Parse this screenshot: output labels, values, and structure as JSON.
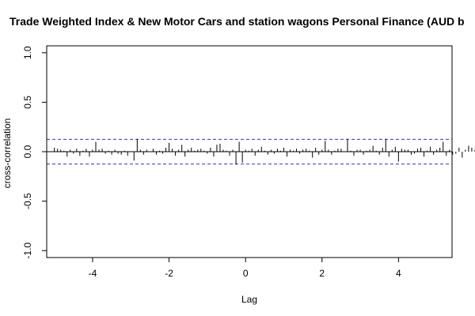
{
  "chart_data": {
    "type": "bar",
    "title": "Trade Weighted Index & New Motor Cars and station wagons Personal Finance (AUD b",
    "xlabel": "Lag",
    "ylabel": "cross-correlation",
    "xlim": [
      -5.2,
      5.4
    ],
    "ylim": [
      -1.07,
      1.07
    ],
    "x_ticks": [
      "-4",
      "-2",
      "0",
      "2",
      "4"
    ],
    "y_ticks": [
      "-1.0",
      "-0.5",
      "0.0",
      "0.5",
      "1.0"
    ],
    "confidence_limit": 0.125,
    "colors": {
      "bars": "#000000",
      "zero_line": "#000000",
      "confidence": "#3333cc",
      "frame": "#000000"
    },
    "lag_start": -5.0,
    "lag_step": 0.08333,
    "values": [
      0.04,
      0.03,
      0.02,
      0.01,
      -0.05,
      0.02,
      -0.02,
      0.03,
      -0.04,
      0.01,
      0.03,
      -0.05,
      0.02,
      0.1,
      0.02,
      0.03,
      -0.02,
      0.01,
      -0.03,
      0.02,
      -0.02,
      -0.03,
      0.01,
      -0.04,
      0.0,
      -0.09,
      0.13,
      0.02,
      -0.03,
      0.02,
      0.0,
      0.03,
      -0.03,
      0.01,
      -0.02,
      0.04,
      0.09,
      0.03,
      -0.04,
      0.02,
      0.07,
      -0.05,
      0.02,
      0.04,
      0.01,
      0.02,
      0.03,
      0.01,
      -0.02,
      0.04,
      -0.05,
      0.07,
      0.08,
      0.02,
      0.01,
      -0.04,
      0.02,
      -0.13,
      0.1,
      -0.11,
      0.02,
      0.01,
      0.03,
      -0.04,
      0.02,
      0.05,
      0.01,
      -0.03,
      0.02,
      -0.02,
      0.03,
      0.01,
      0.04,
      -0.05,
      0.02,
      0.01,
      0.03,
      -0.02,
      0.02,
      0.03,
      0.01,
      -0.06,
      0.04,
      -0.03,
      0.02,
      0.11,
      0.02,
      -0.03,
      0.01,
      0.03,
      0.03,
      0.0,
      0.13,
      0.01,
      -0.04,
      0.02,
      0.02,
      -0.03,
      0.01,
      0.02,
      0.06,
      0.01,
      -0.03,
      0.04,
      0.13,
      -0.05,
      0.02,
      0.05,
      -0.1,
      0.03,
      0.02,
      0.02,
      -0.03,
      -0.02,
      0.03,
      0.04,
      -0.05,
      0.01,
      0.05,
      -0.03,
      0.02,
      0.04,
      0.1,
      -0.04,
      0.02,
      -0.03,
      -0.02,
      0.04,
      -0.06,
      0.02,
      0.06,
      0.04,
      0.02,
      0.01,
      -0.03,
      0.02,
      0.0,
      -0.01,
      0.02,
      0.02,
      -0.03,
      0.04,
      -0.05,
      0.04,
      0.02,
      -0.03,
      0.03,
      0.04,
      -0.02,
      0.06,
      0.02,
      -0.04,
      0.03,
      0.05,
      -0.02,
      0.02,
      0.06,
      -0.06,
      0.07,
      0.03,
      -0.07,
      0.02,
      0.05,
      -0.03,
      0.02,
      0.03,
      -0.04,
      0.06,
      0.04,
      -0.03,
      0.02,
      0.01,
      0.03,
      -0.02,
      0.01,
      0.02,
      -0.04,
      0.03,
      0.0,
      0.09,
      -0.05,
      -0.1,
      0.04
    ]
  }
}
